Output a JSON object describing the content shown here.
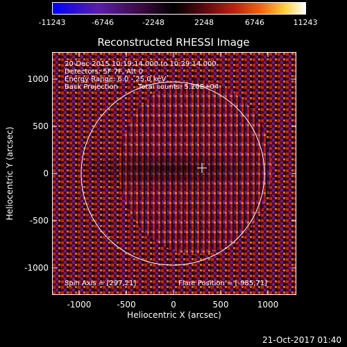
{
  "colorbar": {
    "ticks": [
      "-11243",
      "-6746",
      "-2248",
      "2248",
      "6746",
      "11243"
    ]
  },
  "title": "Reconstructed RHESSI Image",
  "info": {
    "line1": "20-Dec-2015 10:19:14.000 to 10:29:14.000",
    "line2": "Detectors: 5F 7F, Att 0",
    "line3": "Energy Range: 6.0 - 25.0 keV",
    "line4_left": "Back Projection",
    "line4_right": "Total counts: 5.20E+04",
    "spin_axis": "Spin Axis = [297,21]",
    "flare_position": "Flare Position = [-985,71]"
  },
  "axes": {
    "xlabel": "Heliocentric X (arcsec)",
    "ylabel": "Heliocentric Y (arcsec)",
    "xticks": [
      "-1000",
      "-500",
      "0",
      "500",
      "1000"
    ],
    "yticks": [
      "1000",
      "500",
      "0",
      "-500",
      "-1000"
    ],
    "xlim": [
      -1290,
      1290
    ],
    "ylim": [
      -1280,
      1280
    ]
  },
  "footer": "21-Oct-2017 01:40",
  "colors": {
    "background": "#000000",
    "foreground": "#ffffff"
  }
}
